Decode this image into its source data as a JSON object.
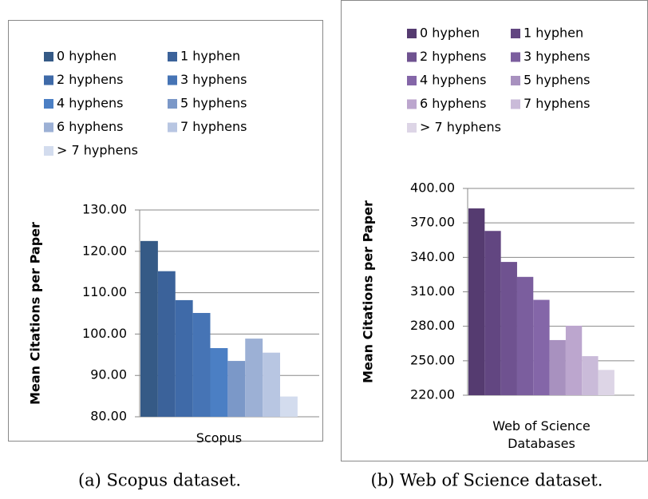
{
  "chart_data": [
    {
      "type": "bar",
      "ylabel": "Mean Citations per Paper",
      "categories": [
        "Scopus"
      ],
      "caption": "(a) Scopus dataset.",
      "ylim": [
        80,
        130
      ],
      "yticks": [
        {
          "value": 80,
          "label": "80.00"
        },
        {
          "value": 90,
          "label": "90.00"
        },
        {
          "value": 100,
          "label": "100.00"
        },
        {
          "value": 110,
          "label": "110.00"
        },
        {
          "value": 120,
          "label": "120.00"
        },
        {
          "value": 130,
          "label": "130.00"
        }
      ],
      "grid": true,
      "series": [
        {
          "name": "0 hyphen",
          "color": "#355a86",
          "values": [
            122.5
          ]
        },
        {
          "name": "1 hyphen",
          "color": "#3b629a",
          "values": [
            115.2
          ]
        },
        {
          "name": "2 hyphens",
          "color": "#3f6aa8",
          "values": [
            108.2
          ]
        },
        {
          "name": "3 hyphens",
          "color": "#4674b5",
          "values": [
            105.1
          ]
        },
        {
          "name": "4 hyphens",
          "color": "#4b7fc4",
          "values": [
            96.6
          ]
        },
        {
          "name": "5 hyphens",
          "color": "#7b98c8",
          "values": [
            93.5
          ]
        },
        {
          "name": "6 hyphens",
          "color": "#9cb0d5",
          "values": [
            98.9
          ]
        },
        {
          "name": "7 hyphens",
          "color": "#b8c6e2",
          "values": [
            95.5
          ]
        },
        {
          "name": "> 7 hyphens",
          "color": "#d3dcee",
          "values": [
            84.9
          ]
        }
      ]
    },
    {
      "type": "bar",
      "ylabel": "Mean Citations per Paper",
      "categories": [
        "Web of Science Databases"
      ],
      "caption": "(b) Web of Science dataset.",
      "ylim": [
        220,
        400
      ],
      "yticks": [
        {
          "value": 220,
          "label": "220.00"
        },
        {
          "value": 250,
          "label": "250.00"
        },
        {
          "value": 280,
          "label": "280.00"
        },
        {
          "value": 310,
          "label": "310.00"
        },
        {
          "value": 340,
          "label": "340.00"
        },
        {
          "value": 370,
          "label": "370.00"
        },
        {
          "value": 400,
          "label": "400.00"
        }
      ],
      "grid": true,
      "series": [
        {
          "name": "0 hyphen",
          "color": "#553b70",
          "values": [
            382.6
          ]
        },
        {
          "name": "1 hyphen",
          "color": "#624681",
          "values": [
            363
          ]
        },
        {
          "name": "2 hyphens",
          "color": "#6f5290",
          "values": [
            336
          ]
        },
        {
          "name": "3 hyphens",
          "color": "#7b5e9e",
          "values": [
            323
          ]
        },
        {
          "name": "4 hyphens",
          "color": "#8466a8",
          "values": [
            303
          ]
        },
        {
          "name": "5 hyphens",
          "color": "#a891bf",
          "values": [
            268
          ]
        },
        {
          "name": "6 hyphens",
          "color": "#bca6ce",
          "values": [
            280.5
          ]
        },
        {
          "name": "7 hyphens",
          "color": "#cabbd9",
          "values": [
            254
          ]
        },
        {
          "name": "> 7 hyphens",
          "color": "#ddd5e6",
          "values": [
            242
          ]
        }
      ]
    }
  ]
}
